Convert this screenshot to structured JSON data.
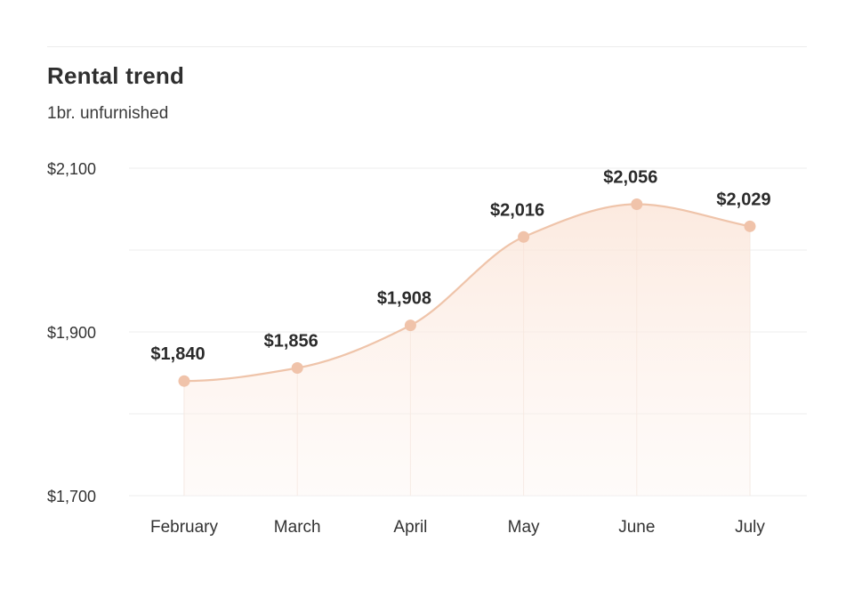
{
  "header": {
    "title": "Rental trend",
    "subtitle": "1br. unfurnished"
  },
  "colors": {
    "line": "#efc4aa",
    "point": "#f0c3aa",
    "fill": "#fbe8dd",
    "grid": "#eeeeee",
    "axis_text": "#333333"
  },
  "chart_data": {
    "type": "area",
    "title": "Rental trend",
    "subtitle": "1br. unfurnished",
    "xlabel": "",
    "ylabel": "",
    "categories": [
      "February",
      "March",
      "April",
      "May",
      "June",
      "July"
    ],
    "series": [
      {
        "values": [
          1840,
          1856,
          1908,
          2016,
          2056,
          2029
        ],
        "labels": [
          "$1,840",
          "$1,856",
          "$1,908",
          "$2,016",
          "$2,056",
          "$2,029"
        ]
      }
    ],
    "ylim": [
      1700,
      2100
    ],
    "yticks": [
      {
        "value": 1700,
        "label": "$1,700"
      },
      {
        "value": 1900,
        "label": "$1,900"
      },
      {
        "value": 2100,
        "label": "$2,100"
      }
    ],
    "grid": true,
    "legend": "none",
    "smooth": true
  }
}
